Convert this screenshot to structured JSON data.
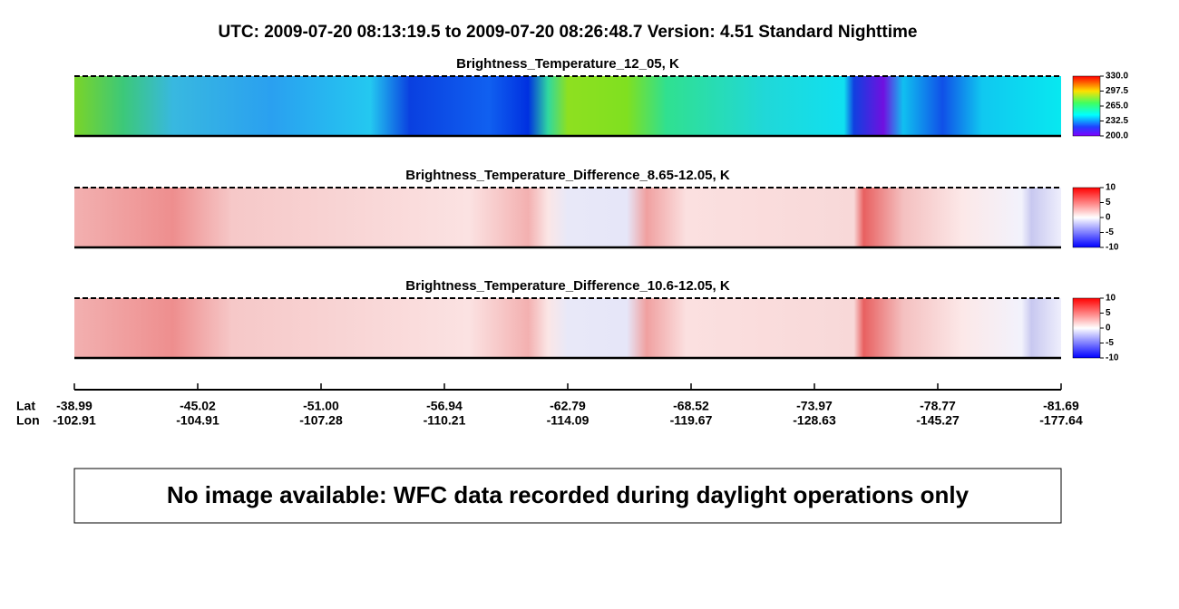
{
  "title": "UTC:  2009-07-20   08:13:19.5  to  2009-07-20   08:26:48.7    Version: 4.51  Standard Nighttime",
  "panels": [
    {
      "title": "Brightness_Temperature_12_05, K",
      "colorbar_ticks": [
        {
          "value": 330,
          "label": "330.0"
        },
        {
          "value": 297.5,
          "label": "297.5"
        },
        {
          "value": 265,
          "label": "265.0"
        },
        {
          "value": 232.5,
          "label": "232.5"
        },
        {
          "value": 200,
          "label": "200.0"
        }
      ]
    },
    {
      "title": "Brightness_Temperature_Difference_8.65-12.05, K",
      "colorbar_ticks": [
        10,
        5,
        0,
        -5,
        -10
      ]
    },
    {
      "title": "Brightness_Temperature_Difference_10.6-12.05, K",
      "colorbar_ticks": [
        10,
        5,
        0,
        -5,
        -10
      ]
    }
  ],
  "axis": {
    "lat_label": "Lat",
    "lon_label": "Lon",
    "lat": [
      "-38.99",
      "-45.02",
      "-51.00",
      "-56.94",
      "-62.79",
      "-68.52",
      "-73.97",
      "-78.77",
      "-81.69"
    ],
    "lon": [
      "-102.91",
      "-104.91",
      "-107.28",
      "-110.21",
      "-114.09",
      "-119.67",
      "-128.63",
      "-145.27",
      "-177.64"
    ]
  },
  "message": "No image available: WFC data recorded during daylight operations only"
}
